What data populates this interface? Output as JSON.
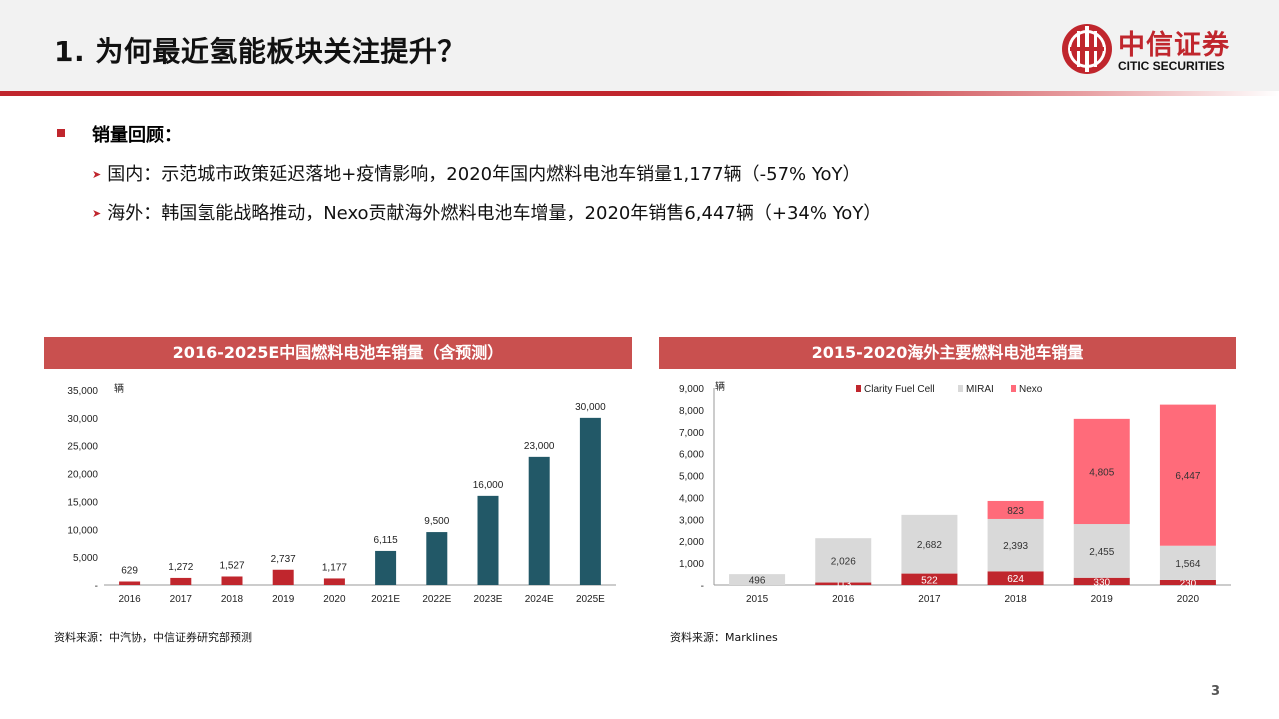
{
  "header": {
    "title": "1. 为何最近氢能板块关注提升？",
    "logo_cn": "中信证券",
    "logo_en": "CITIC SECURITIES"
  },
  "content": {
    "bullet_title": "销量回顾：",
    "sub1": "国内：示范城市政策延迟落地+疫情影响，2020年国内燃料电池车销量1,177辆（-57% YoY）",
    "sub2": "海外：韩国氢能战略推动，Nexo贡献海外燃料电池车增量，2020年销售6,447辆（+34% YoY）"
  },
  "colors": {
    "accent": "#c0262d",
    "panel_header": "#c9504f",
    "actual_bar": "#c0262d",
    "forecast_bar": "#225867",
    "clarity": "#c0262d",
    "mirai": "#d9d9d9",
    "nexo": "#ff6b7a"
  },
  "chart_data": [
    {
      "type": "bar",
      "title": "2016-2025E中国燃料电池车销量（含预测）",
      "ylabel": "辆",
      "categories": [
        "2016",
        "2017",
        "2018",
        "2019",
        "2020",
        "2021E",
        "2022E",
        "2023E",
        "2024E",
        "2025E"
      ],
      "values": [
        629,
        1272,
        1527,
        2737,
        1177,
        6115,
        9500,
        16000,
        23000,
        30000
      ],
      "value_labels": [
        "629",
        "1,272",
        "1,527",
        "2,737",
        "1,177",
        "6,115",
        "9,500",
        "16,000",
        "23,000",
        "30,000"
      ],
      "forecast_from_index": 5,
      "ylim": [
        0,
        35000
      ],
      "yticks": [
        0,
        5000,
        10000,
        15000,
        20000,
        25000,
        30000,
        35000
      ],
      "ytick_labels": [
        "-",
        "5,000",
        "10,000",
        "15,000",
        "20,000",
        "25,000",
        "30,000",
        "35,000"
      ],
      "source": "资料来源：中汽协，中信证券研究部预测"
    },
    {
      "type": "bar",
      "stacked": true,
      "title": "2015-2020海外主要燃料电池车销量",
      "ylabel": "辆",
      "categories": [
        "2015",
        "2016",
        "2017",
        "2018",
        "2019",
        "2020"
      ],
      "series": [
        {
          "name": "Clarity Fuel Cell",
          "values": [
            0,
            113,
            522,
            624,
            330,
            230
          ],
          "labels": [
            "",
            "113",
            "522",
            "624",
            "330",
            "230"
          ]
        },
        {
          "name": "MIRAI",
          "values": [
            496,
            2026,
            2682,
            2393,
            2455,
            1564
          ],
          "labels": [
            "496",
            "2,026",
            "2,682",
            "2,393",
            "2,455",
            "1,564"
          ]
        },
        {
          "name": "Nexo",
          "values": [
            0,
            0,
            0,
            823,
            4805,
            6447
          ],
          "labels": [
            "",
            "",
            "",
            "823",
            "4,805",
            "6,447"
          ]
        }
      ],
      "ylim": [
        0,
        9000
      ],
      "yticks": [
        0,
        1000,
        2000,
        3000,
        4000,
        5000,
        6000,
        7000,
        8000,
        9000
      ],
      "ytick_labels": [
        "-",
        "1,000",
        "2,000",
        "3,000",
        "4,000",
        "5,000",
        "6,000",
        "7,000",
        "8,000",
        "9,000"
      ],
      "legend": "top",
      "source": "资料来源：Marklines"
    }
  ],
  "page_number": "3"
}
